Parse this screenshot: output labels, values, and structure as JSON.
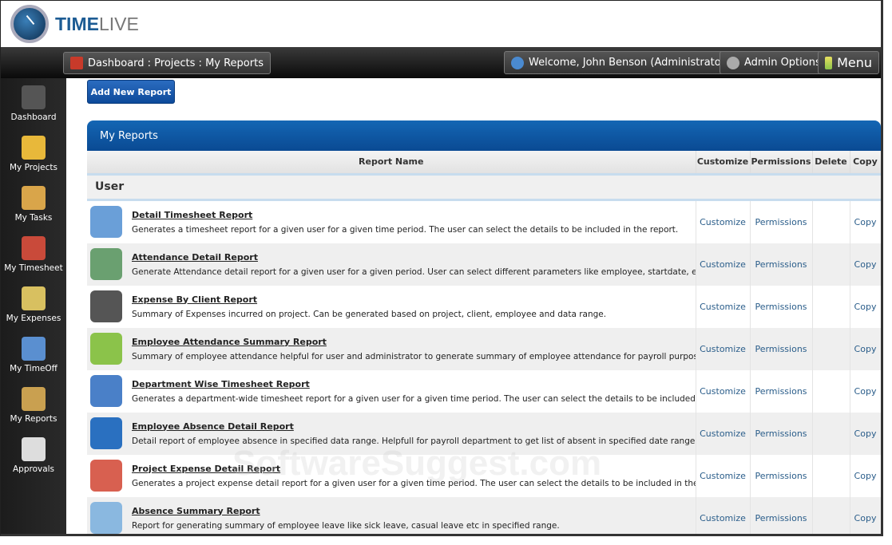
{
  "app": {
    "logo_bold": "TIME",
    "logo_light": "LIVE"
  },
  "breadcrumb": "Dashboard : Projects : My Reports",
  "topbar": {
    "welcome": "Welcome, John Benson (Administrator)",
    "admin": "Admin Options",
    "menu": "Menu"
  },
  "sidebar": [
    {
      "label": "Dashboard",
      "icon": "dashboard-icon",
      "color": "#555"
    },
    {
      "label": "My Projects",
      "icon": "folder-icon",
      "color": "#e8b83a"
    },
    {
      "label": "My Tasks",
      "icon": "clipboard-icon",
      "color": "#d9a54a"
    },
    {
      "label": "My Timesheet",
      "icon": "calendar-clock-icon",
      "color": "#c94a3a"
    },
    {
      "label": "My Expenses",
      "icon": "coins-icon",
      "color": "#d8c060"
    },
    {
      "label": "My TimeOff",
      "icon": "calendar-icon",
      "color": "#5a8fd0"
    },
    {
      "label": "My Reports",
      "icon": "report-icon",
      "color": "#c9a050"
    },
    {
      "label": "Approvals",
      "icon": "checklist-icon",
      "color": "#ddd"
    }
  ],
  "add_button": "Add New Report",
  "panel_title": "My Reports",
  "columns": [
    "Report Name",
    "Customize",
    "Permissions",
    "Delete",
    "Copy"
  ],
  "group": "User",
  "action_labels": {
    "customize": "Customize",
    "permissions": "Permissions",
    "copy": "Copy"
  },
  "reports": [
    {
      "title": "Detail Timesheet Report",
      "desc": "Generates a timesheet report for a given user for a given time period. The user can select the details to be included in the report.",
      "color": "#6a9fd8"
    },
    {
      "title": "Attendance Detail Report",
      "desc": "Generate Attendance detail report for a given user for a given period. User can select different parameters like employee, startdate, enddate.",
      "color": "#6aa070"
    },
    {
      "title": "Expense By Client Report",
      "desc": "Summary of Expenses incurred on project. Can be generated based on project, client, employee and data range.",
      "color": "#555"
    },
    {
      "title": "Employee Attendance Summary Report",
      "desc": "Summary of employee attendance helpful for user and administrator to generate summary of employee attendance for payroll purpose.",
      "color": "#8bc34a"
    },
    {
      "title": "Department Wise Timesheet Report",
      "desc": "Generates a department-wide timesheet report for a given user for a given time period. The user can select the details to be included in the rep",
      "color": "#4a80c8"
    },
    {
      "title": "Employee Absence Detail Report",
      "desc": "Detail report of employee absence in specified data range. Helpfull for payroll department to get list of absent in specified date range.",
      "color": "#2a70c0"
    },
    {
      "title": "Project Expense Detail Report",
      "desc": "Generates a project expense detail report for a given user for a given time period. The user can select the details to be included in the report.",
      "color": "#d86050"
    },
    {
      "title": "Absence Summary Report",
      "desc": "Report for generating summary of employee leave like sick leave, casual leave etc in specified range.",
      "color": "#8ab8e0"
    }
  ],
  "watermark": "SoftwareSuggest.com"
}
